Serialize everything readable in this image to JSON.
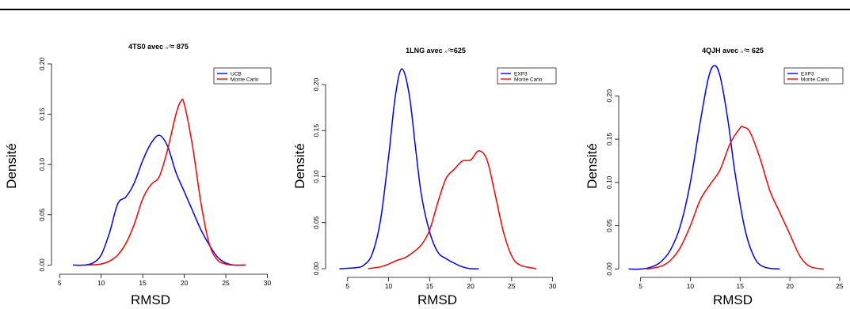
{
  "chart_data": [
    {
      "type": "line",
      "title_prefix": "4TS0 avec ",
      "title_suffix": "= 875",
      "title_symbol": "n_0",
      "xlabel": "RMSD",
      "ylabel": "Densité",
      "xlim": [
        4.5,
        31
      ],
      "ylim": [
        -0.006,
        0.207
      ],
      "xticks": [
        "5",
        "10",
        "15",
        "20",
        "25",
        "30"
      ],
      "yticks": [
        "0.00",
        "0.05",
        "0.10",
        "0.15",
        "0.20"
      ],
      "legend_position": "top-right",
      "series": [
        {
          "name": "UCB",
          "color": "#0000ff",
          "x": [
            6.6,
            8,
            9,
            10,
            11,
            12,
            13,
            14,
            15,
            16,
            17,
            18,
            19,
            20,
            21,
            22,
            23,
            24,
            25,
            26,
            27.4
          ],
          "y": [
            0.0,
            0.0,
            0.002,
            0.01,
            0.032,
            0.061,
            0.068,
            0.082,
            0.104,
            0.121,
            0.129,
            0.118,
            0.092,
            0.073,
            0.054,
            0.035,
            0.02,
            0.008,
            0.002,
            0.0,
            0.0
          ]
        },
        {
          "name": "Monte Carlo",
          "color": "#ff0000",
          "x": [
            8.5,
            10,
            11,
            12,
            13,
            14,
            15,
            16,
            17,
            18,
            19,
            19.6,
            20,
            21,
            22,
            23,
            24,
            25,
            26,
            27.4
          ],
          "y": [
            0.0,
            0.001,
            0.004,
            0.01,
            0.022,
            0.041,
            0.066,
            0.08,
            0.088,
            0.115,
            0.15,
            0.163,
            0.16,
            0.118,
            0.062,
            0.021,
            0.005,
            0.001,
            0.0,
            0.0
          ]
        }
      ]
    },
    {
      "type": "line",
      "title_prefix": "1LNG avec ",
      "title_suffix": "=625",
      "title_symbol": "n_0",
      "xlabel": "RMSD",
      "ylabel": "Densité",
      "xlim": [
        2.8,
        31
      ],
      "ylim": [
        -0.006,
        0.23
      ],
      "xticks": [
        "5",
        "10",
        "15",
        "20",
        "25",
        "30"
      ],
      "yticks": [
        "0.00",
        "0.05",
        "0.10",
        "0.15",
        "0.20"
      ],
      "legend_position": "top-right",
      "series": [
        {
          "name": "EXP3",
          "color": "#0000ff",
          "x": [
            4,
            6,
            7,
            8,
            9,
            10,
            10.8,
            11.6,
            12.5,
            13.3,
            14,
            15,
            16,
            17,
            18,
            19,
            20,
            21
          ],
          "y": [
            0.0,
            0.001,
            0.004,
            0.016,
            0.052,
            0.122,
            0.186,
            0.217,
            0.19,
            0.13,
            0.08,
            0.04,
            0.018,
            0.011,
            0.006,
            0.002,
            0.0,
            0.0
          ]
        },
        {
          "name": "Monte Carlo",
          "color": "#ff0000",
          "x": [
            7.5,
            9,
            10,
            11,
            12,
            13,
            14,
            15,
            16,
            17,
            18,
            19,
            20,
            21,
            22,
            23,
            24,
            25,
            26,
            28
          ],
          "y": [
            0.0,
            0.002,
            0.005,
            0.009,
            0.012,
            0.018,
            0.026,
            0.042,
            0.072,
            0.098,
            0.108,
            0.117,
            0.118,
            0.128,
            0.118,
            0.08,
            0.04,
            0.014,
            0.004,
            0.0
          ]
        }
      ]
    },
    {
      "type": "line",
      "title_prefix": "4QJH avec ",
      "title_suffix": "= 625",
      "title_symbol": "n_0",
      "xlabel": "RMSD",
      "ylabel": "Densité",
      "xlim": [
        3.2,
        25.8
      ],
      "ylim": [
        -0.006,
        0.245
      ],
      "xticks": [
        "5",
        "10",
        "15",
        "20",
        "25"
      ],
      "yticks": [
        "0.00",
        "0.05",
        "0.10",
        "0.15",
        "0.20"
      ],
      "legend_position": "top-right",
      "series": [
        {
          "name": "EXP3",
          "color": "#0000ff",
          "x": [
            3.8,
            5,
            6,
            7,
            8,
            9,
            10,
            11,
            11.8,
            12.4,
            13,
            13.8,
            14.5,
            15.5,
            16.5,
            17.5,
            19
          ],
          "y": [
            0.0,
            0.0,
            0.002,
            0.008,
            0.022,
            0.05,
            0.1,
            0.17,
            0.22,
            0.235,
            0.222,
            0.17,
            0.11,
            0.045,
            0.012,
            0.002,
            0.0
          ]
        },
        {
          "name": "Monte Carlo",
          "color": "#ff0000",
          "x": [
            5.6,
            7,
            8,
            9,
            10,
            11,
            12,
            13,
            14,
            15,
            15.3,
            16,
            17,
            18,
            19,
            20,
            21,
            22,
            23.4
          ],
          "y": [
            0.0,
            0.003,
            0.01,
            0.025,
            0.05,
            0.08,
            0.098,
            0.115,
            0.145,
            0.163,
            0.164,
            0.158,
            0.128,
            0.09,
            0.065,
            0.04,
            0.015,
            0.003,
            0.0
          ]
        }
      ]
    }
  ]
}
